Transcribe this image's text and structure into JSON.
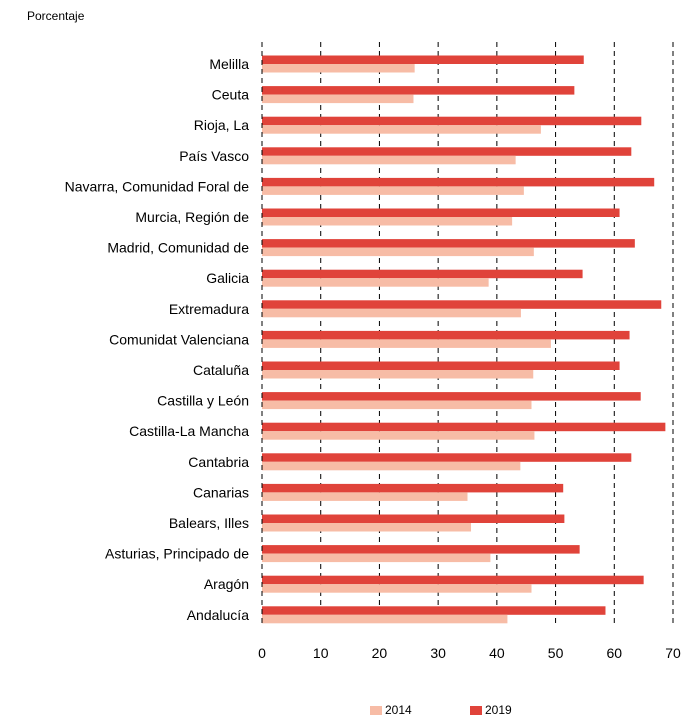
{
  "chart_data": {
    "type": "bar",
    "orientation": "horizontal",
    "ylabel": "Porcentaje",
    "categories": [
      "Melilla",
      "Ceuta",
      "Rioja, La",
      "País Vasco",
      "Navarra, Comunidad Foral de",
      "Murcia, Región de",
      "Madrid, Comunidad de",
      "Galicia",
      "Extremadura",
      "Comunidat Valenciana",
      "Cataluña",
      "Castilla y León",
      "Castilla-La Mancha",
      "Cantabria",
      "Canarias",
      "Balears, Illes",
      "Asturias, Principado de",
      "Aragón",
      "Andalucía"
    ],
    "series": [
      {
        "name": "2019",
        "color": "#e0433a",
        "values": [
          54.8,
          53.2,
          64.6,
          62.9,
          66.8,
          60.9,
          63.5,
          54.6,
          68.0,
          62.6,
          60.9,
          64.5,
          68.7,
          62.9,
          51.3,
          51.5,
          54.1,
          65.0,
          58.5
        ]
      },
      {
        "name": "2014",
        "color": "#f7bca6",
        "values": [
          26.0,
          25.8,
          47.5,
          43.2,
          44.6,
          42.6,
          46.3,
          38.6,
          44.1,
          49.2,
          46.2,
          45.9,
          46.4,
          44.0,
          35.0,
          35.6,
          38.9,
          45.9,
          41.8
        ]
      }
    ],
    "xlim": [
      0,
      70
    ],
    "xticks": [
      "0",
      "10",
      "20",
      "30",
      "40",
      "50",
      "60",
      "70"
    ],
    "grid": "vertical-dashed",
    "legend": {
      "position": "bottom",
      "items": [
        "2014",
        "2019"
      ]
    }
  }
}
